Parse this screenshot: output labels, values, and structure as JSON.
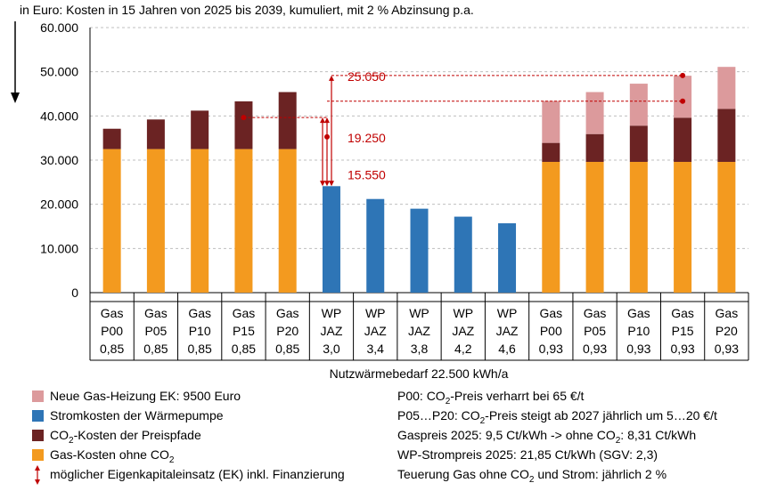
{
  "chart_data": {
    "type": "bar",
    "stacked": true,
    "title": "in Euro: Kosten in  15 Jahren von 2025 bis 2039, kumuliert, mit 2 % Abzinsung p.a.",
    "xlabel": "Nutzwärmebedarf 22.500 kWh/a",
    "ylim": [
      0,
      60000
    ],
    "yticks": [
      "0",
      "10.000",
      "20.000",
      "30.000",
      "40.000",
      "50.000",
      "60.000"
    ],
    "categories": [
      [
        "Gas",
        "P00",
        "0,85"
      ],
      [
        "Gas",
        "P05",
        "0,85"
      ],
      [
        "Gas",
        "P10",
        "0,85"
      ],
      [
        "Gas",
        "P15",
        "0,85"
      ],
      [
        "Gas",
        "P20",
        "0,85"
      ],
      [
        "WP",
        "JAZ",
        "3,0"
      ],
      [
        "WP",
        "JAZ",
        "3,4"
      ],
      [
        "WP",
        "JAZ",
        "3,8"
      ],
      [
        "WP",
        "JAZ",
        "4,2"
      ],
      [
        "WP",
        "JAZ",
        "4,6"
      ],
      [
        "Gas",
        "P00",
        "0,93"
      ],
      [
        "Gas",
        "P05",
        "0,93"
      ],
      [
        "Gas",
        "P10",
        "0,93"
      ],
      [
        "Gas",
        "P15",
        "0,93"
      ],
      [
        "Gas",
        "P20",
        "0,93"
      ]
    ],
    "series": [
      {
        "name": "Gas-Kosten ohne CO2",
        "color": "#f39a1f",
        "values": [
          32500,
          32500,
          32500,
          32500,
          32500,
          0,
          0,
          0,
          0,
          0,
          29600,
          29600,
          29600,
          29600,
          29600
        ]
      },
      {
        "name": "Stromkosten der Wärmepumpe",
        "color": "#2e75b6",
        "values": [
          0,
          0,
          0,
          0,
          0,
          24100,
          21200,
          19000,
          17200,
          15700,
          0,
          0,
          0,
          0,
          0
        ]
      },
      {
        "name": "CO2-Kosten der Preispfade",
        "color": "#6b2323",
        "values": [
          4600,
          6700,
          8700,
          10800,
          12900,
          0,
          0,
          0,
          0,
          0,
          4300,
          6300,
          8200,
          10000,
          12000
        ]
      },
      {
        "name": "Neue Gas-Heizung EK: 9500 Euro",
        "color": "#dc9a9c",
        "values": [
          0,
          0,
          0,
          0,
          0,
          0,
          0,
          0,
          0,
          0,
          9500,
          9500,
          9500,
          9500,
          9500
        ]
      }
    ],
    "annotations": [
      {
        "text": "25.050",
        "from": 24100,
        "to": 49150
      },
      {
        "text": "19.250",
        "from": 24100,
        "to": 43350
      },
      {
        "text": "15.550",
        "from": 24100,
        "to": 39650
      }
    ]
  },
  "legend": {
    "items": [
      {
        "pre": "Neue Gas-Heizung EK: 9500 Euro",
        "sub": "",
        "post": "",
        "color": "#dc9a9c"
      },
      {
        "pre": "Stromkosten der Wärmepumpe",
        "sub": "",
        "post": "",
        "color": "#2e75b6"
      },
      {
        "pre": "CO",
        "sub": "2",
        "post": "-Kosten der Preispfade",
        "color": "#6b2323"
      },
      {
        "pre": "Gas-Kosten ohne CO",
        "sub": "2",
        "post": "",
        "color": "#f39a1f"
      },
      {
        "pre": "möglicher Eigenkapitaleinsatz (EK) inkl. Finanzierung",
        "sub": "",
        "post": "",
        "color": "#c00000"
      }
    ]
  },
  "notes": [
    {
      "pre": "P00: CO",
      "sub": "2",
      "post": "-Preis verharrt  bei 65 €/t"
    },
    {
      "pre": "P05…P20: CO",
      "sub": "2",
      "post": "-Preis steigt ab 2027 jährlich um 5…20 €/t"
    },
    {
      "pre": "Gaspreis 2025: 9,5 Ct/kWh -> ohne CO",
      "sub": "2",
      "post": ":  8,31 Ct/kWh"
    },
    {
      "pre": "WP-Strompreis  2025: 21,85 Ct/kWh (SGV: 2,3)",
      "sub": "",
      "post": ""
    },
    {
      "pre": "Teuerung  Gas ohne CO",
      "sub": "2",
      "post": " und Strom: jährlich 2 %"
    }
  ]
}
